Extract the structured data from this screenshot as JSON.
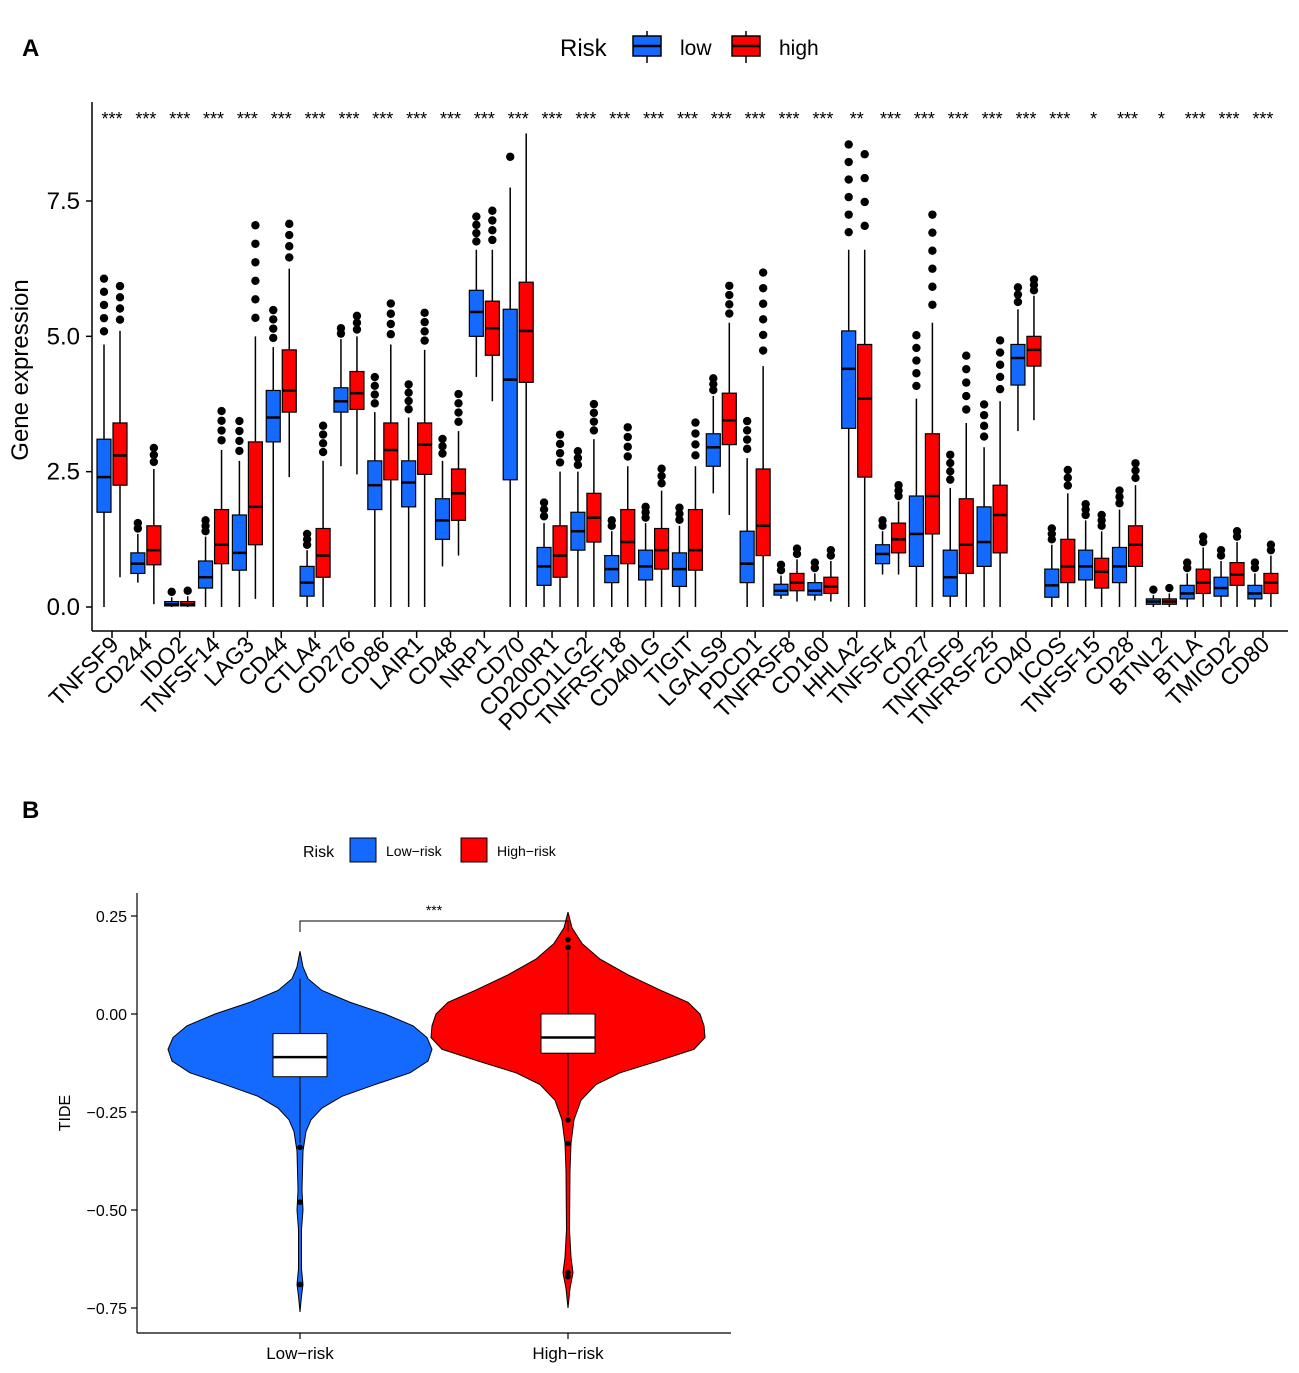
{
  "panel_a": {
    "label": "A",
    "legend": {
      "title": "Risk",
      "items": [
        {
          "name": "low",
          "color": "#1469ff"
        },
        {
          "name": "high",
          "color": "#ff0000"
        }
      ]
    },
    "chart_data": {
      "type": "boxplot",
      "ylabel": "Gene expression",
      "ylim": [
        -0.4,
        9.1
      ],
      "yticks": [
        0.0,
        2.5,
        5.0,
        7.5
      ],
      "ytick_labels": [
        "0.0",
        "2.5",
        "5.0",
        "7.5"
      ],
      "categories": [
        "TNFSF9",
        "CD244",
        "IDO2",
        "TNFSF14",
        "LAG3",
        "CD44",
        "CTLA4",
        "CD276",
        "CD86",
        "LAIR1",
        "CD48",
        "NRP1",
        "CD70",
        "CD200R1",
        "PDCD1LG2",
        "TNFRSF18",
        "CD40LG",
        "TIGIT",
        "LGALS9",
        "PDCD1",
        "TNFRSF8",
        "CD160",
        "HHLA2",
        "TNFSF4",
        "CD27",
        "TNFRSF9",
        "TNFRSF25",
        "CD40",
        "ICOS",
        "TNFSF15",
        "CD28",
        "BTNL2",
        "BTLA",
        "TMIGD2",
        "CD80"
      ],
      "significance": [
        "***",
        "***",
        "***",
        "***",
        "***",
        "***",
        "***",
        "***",
        "***",
        "***",
        "***",
        "***",
        "***",
        "***",
        "***",
        "***",
        "***",
        "***",
        "***",
        "***",
        "***",
        "***",
        "**",
        "***",
        "***",
        "***",
        "***",
        "***",
        "***",
        "*",
        "***",
        "*",
        "***",
        "***",
        "***"
      ],
      "series": [
        {
          "name": "low",
          "boxes": [
            [
              0.0,
              1.75,
              2.4,
              3.1,
              4.85
            ],
            [
              0.45,
              0.62,
              0.8,
              1.0,
              1.35
            ],
            [
              0.0,
              0.02,
              0.05,
              0.1,
              0.18
            ],
            [
              0.0,
              0.35,
              0.55,
              0.85,
              1.3
            ],
            [
              0.0,
              0.68,
              1.0,
              1.7,
              2.7
            ],
            [
              0.0,
              3.05,
              3.5,
              4.0,
              4.8
            ],
            [
              0.0,
              0.2,
              0.45,
              0.75,
              1.05
            ],
            [
              2.6,
              3.6,
              3.8,
              4.05,
              4.95
            ],
            [
              0.0,
              1.8,
              2.25,
              2.7,
              3.6
            ],
            [
              0.0,
              1.85,
              2.3,
              2.7,
              3.5
            ],
            [
              0.75,
              1.25,
              1.6,
              2.0,
              2.7
            ],
            [
              4.25,
              5.0,
              5.45,
              5.85,
              6.6
            ],
            [
              0.0,
              2.35,
              4.2,
              5.5,
              7.75
            ],
            [
              0.0,
              0.4,
              0.75,
              1.1,
              1.55
            ],
            [
              0.0,
              1.05,
              1.4,
              1.75,
              2.5
            ],
            [
              0.0,
              0.45,
              0.7,
              0.95,
              1.4
            ],
            [
              0.0,
              0.5,
              0.75,
              1.05,
              1.55
            ],
            [
              0.0,
              0.38,
              0.7,
              1.0,
              1.5
            ],
            [
              2.1,
              2.6,
              2.95,
              3.2,
              3.9
            ],
            [
              0.0,
              0.45,
              0.8,
              1.4,
              2.75
            ],
            [
              0.15,
              0.22,
              0.3,
              0.42,
              0.58
            ],
            [
              0.12,
              0.22,
              0.3,
              0.45,
              0.62
            ],
            [
              0.0,
              3.3,
              4.4,
              5.1,
              6.6
            ],
            [
              0.6,
              0.8,
              0.98,
              1.15,
              1.4
            ],
            [
              0.0,
              0.75,
              1.35,
              2.05,
              3.85
            ],
            [
              0.0,
              0.2,
              0.55,
              1.05,
              2.2
            ],
            [
              0.0,
              0.75,
              1.2,
              1.85,
              2.95
            ],
            [
              3.25,
              4.1,
              4.6,
              4.85,
              5.5
            ],
            [
              0.0,
              0.18,
              0.4,
              0.7,
              1.15
            ],
            [
              0.0,
              0.5,
              0.75,
              1.05,
              1.6
            ],
            [
              0.0,
              0.45,
              0.75,
              1.1,
              1.8
            ],
            [
              0.0,
              0.05,
              0.1,
              0.15,
              0.22
            ],
            [
              0.0,
              0.15,
              0.25,
              0.4,
              0.62
            ],
            [
              0.0,
              0.2,
              0.35,
              0.55,
              0.85
            ],
            [
              0.0,
              0.15,
              0.25,
              0.4,
              0.62
            ]
          ]
        },
        {
          "name": "high",
          "boxes": [
            [
              0.55,
              2.25,
              2.8,
              3.4,
              5.1
            ],
            [
              0.05,
              0.78,
              1.05,
              1.5,
              2.55
            ],
            [
              0.0,
              0.02,
              0.05,
              0.1,
              0.2
            ],
            [
              0.0,
              0.8,
              1.15,
              1.8,
              2.9
            ],
            [
              0.15,
              1.15,
              1.85,
              3.05,
              5.0
            ],
            [
              2.4,
              3.6,
              4.0,
              4.75,
              6.25
            ],
            [
              0.0,
              0.55,
              0.95,
              1.45,
              2.7
            ],
            [
              2.45,
              3.65,
              3.95,
              4.35,
              5.0
            ],
            [
              0.0,
              2.35,
              2.9,
              3.4,
              4.85
            ],
            [
              0.0,
              2.45,
              3.0,
              3.4,
              4.75
            ],
            [
              0.95,
              1.6,
              2.1,
              2.55,
              3.25
            ],
            [
              3.8,
              4.65,
              5.15,
              5.65,
              6.6
            ],
            [
              0.0,
              4.15,
              5.1,
              6.0,
              8.75
            ],
            [
              0.0,
              0.55,
              0.95,
              1.5,
              2.5
            ],
            [
              0.0,
              1.2,
              1.65,
              2.1,
              3.1
            ],
            [
              0.0,
              0.8,
              1.2,
              1.8,
              2.6
            ],
            [
              0.0,
              0.7,
              1.05,
              1.45,
              2.15
            ],
            [
              0.0,
              0.68,
              1.05,
              1.8,
              2.6
            ],
            [
              1.7,
              3.0,
              3.45,
              3.95,
              5.25
            ],
            [
              0.0,
              0.95,
              1.5,
              2.55,
              4.45
            ],
            [
              0.1,
              0.3,
              0.45,
              0.62,
              0.88
            ],
            [
              0.1,
              0.25,
              0.38,
              0.55,
              0.85
            ],
            [
              0.0,
              2.4,
              3.85,
              4.85,
              6.6
            ],
            [
              0.6,
              1.0,
              1.25,
              1.55,
              1.95
            ],
            [
              0.0,
              1.35,
              2.05,
              3.2,
              5.25
            ],
            [
              0.0,
              0.62,
              1.15,
              2.0,
              3.4
            ],
            [
              0.0,
              1.0,
              1.7,
              2.25,
              3.8
            ],
            [
              3.45,
              4.45,
              4.75,
              5.0,
              5.75
            ],
            [
              0.0,
              0.45,
              0.75,
              1.25,
              2.1
            ],
            [
              0.0,
              0.35,
              0.65,
              0.9,
              1.4
            ],
            [
              0.0,
              0.75,
              1.15,
              1.5,
              2.25
            ],
            [
              0.0,
              0.05,
              0.1,
              0.15,
              0.25
            ],
            [
              0.0,
              0.25,
              0.45,
              0.7,
              1.1
            ],
            [
              0.0,
              0.4,
              0.6,
              0.82,
              1.2
            ],
            [
              0.0,
              0.25,
              0.45,
              0.62,
              0.95
            ]
          ]
        }
      ]
    }
  },
  "panel_b": {
    "label": "B",
    "legend": {
      "title": "Risk",
      "items": [
        {
          "name": "Low−risk",
          "color": "#1469ff"
        },
        {
          "name": "High−risk",
          "color": "#ff0000"
        }
      ]
    },
    "chart_data": {
      "type": "violin",
      "ylabel": "TIDE",
      "ylim": [
        -0.8,
        0.3
      ],
      "yticks": [
        -0.75,
        -0.5,
        -0.25,
        0.0,
        0.25
      ],
      "ytick_labels": [
        "−0.75",
        "−0.50",
        "−0.25",
        "0.00",
        "0.25"
      ],
      "categories": [
        "Low−risk",
        "High−risk"
      ],
      "significance": "***",
      "groups": [
        {
          "name": "Low−risk",
          "min": -0.76,
          "max": 0.16,
          "q1": -0.16,
          "median": -0.11,
          "q3": -0.05,
          "whisker_low": -0.33,
          "whisker_high": 0.09,
          "outliers": [
            -0.34,
            -0.48,
            -0.69
          ]
        },
        {
          "name": "High−risk",
          "min": -0.75,
          "max": 0.26,
          "q1": -0.1,
          "median": -0.06,
          "q3": 0.0,
          "whisker_low": -0.26,
          "whisker_high": 0.16,
          "outliers": [
            -0.27,
            -0.33,
            0.19,
            0.17,
            -0.66,
            -0.67
          ]
        }
      ]
    }
  }
}
